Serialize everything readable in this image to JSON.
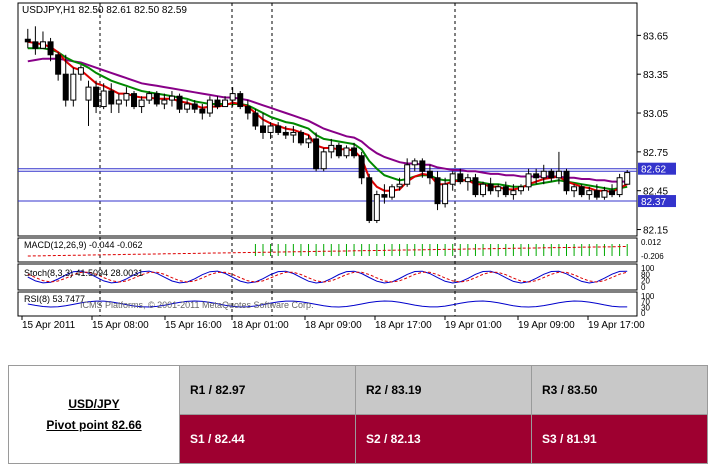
{
  "chart": {
    "symbol_line": "USDJPY,H1  82.50 82.61 82.50 82.59",
    "macd_label": "MACD(12,26,9) -0.044 -0.062",
    "stoch_label": "Stoch(8,3,3) 41.5094 28.0031",
    "rsi_label": "RSI(8) 53.7477",
    "copyright": "ICMS Platforms, © 2001-2011 MetaQuotes Software Corp.",
    "price_axis_labels": [
      "83.65",
      "83.35",
      "83.05",
      "82.75",
      "82.45",
      "82.15"
    ],
    "line_tags": [
      {
        "value": 82.62,
        "label": "82.62",
        "color": "#3333cc"
      },
      {
        "value": 82.37,
        "label": "82.37",
        "color": "#3333cc"
      }
    ],
    "macd_axis_labels": [
      "0.012",
      "-0.206"
    ],
    "stoch_axis_labels": [
      "100",
      "80",
      "20",
      "0"
    ],
    "rsi_axis_labels": [
      "100",
      "70",
      "30",
      "0"
    ],
    "colors": {
      "ma_fast": "#dd0000",
      "ma_mid": "#008800",
      "ma_slow": "#880088",
      "level_line": "#3333cc",
      "macd_hist": "#00aa00",
      "stoch_main": "#0000cc",
      "stoch_signal": "#dd0000",
      "rsi": "#0000cc"
    }
  },
  "chart_data": {
    "type": "candlestick",
    "ylim": [
      82.1,
      83.9
    ],
    "x_tick_labels": [
      "15 Apr 2011",
      "15 Apr 08:00",
      "15 Apr 16:00",
      "18 Apr 01:00",
      "18 Apr 09:00",
      "18 Apr 17:00",
      "19 Apr 01:00",
      "19 Apr 09:00",
      "19 Apr 17:00"
    ],
    "candles": [
      {
        "o": 83.62,
        "h": 83.7,
        "l": 83.55,
        "c": 83.6
      },
      {
        "o": 83.6,
        "h": 83.72,
        "l": 83.5,
        "c": 83.55
      },
      {
        "o": 83.55,
        "h": 83.68,
        "l": 83.55,
        "c": 83.6
      },
      {
        "o": 83.6,
        "h": 83.63,
        "l": 83.45,
        "c": 83.5
      },
      {
        "o": 83.5,
        "h": 83.52,
        "l": 83.3,
        "c": 83.35
      },
      {
        "o": 83.35,
        "h": 83.5,
        "l": 83.1,
        "c": 83.15
      },
      {
        "o": 83.15,
        "h": 83.4,
        "l": 83.1,
        "c": 83.35
      },
      {
        "o": 83.35,
        "h": 83.42,
        "l": 83.3,
        "c": 83.4
      },
      {
        "o": 83.15,
        "h": 83.3,
        "l": 82.95,
        "c": 83.25
      },
      {
        "o": 83.25,
        "h": 83.3,
        "l": 83.05,
        "c": 83.1
      },
      {
        "o": 83.1,
        "h": 83.28,
        "l": 83.08,
        "c": 83.22
      },
      {
        "o": 83.22,
        "h": 83.28,
        "l": 83.05,
        "c": 83.12
      },
      {
        "o": 83.12,
        "h": 83.2,
        "l": 83.05,
        "c": 83.15
      },
      {
        "o": 83.15,
        "h": 83.25,
        "l": 83.1,
        "c": 83.2
      },
      {
        "o": 83.2,
        "h": 83.22,
        "l": 83.08,
        "c": 83.1
      },
      {
        "o": 83.1,
        "h": 83.18,
        "l": 83.05,
        "c": 83.15
      },
      {
        "o": 83.15,
        "h": 83.22,
        "l": 83.12,
        "c": 83.2
      },
      {
        "o": 83.2,
        "h": 83.22,
        "l": 83.1,
        "c": 83.12
      },
      {
        "o": 83.12,
        "h": 83.2,
        "l": 83.08,
        "c": 83.15
      },
      {
        "o": 83.15,
        "h": 83.22,
        "l": 83.1,
        "c": 83.18
      },
      {
        "o": 83.18,
        "h": 83.2,
        "l": 83.05,
        "c": 83.08
      },
      {
        "o": 83.08,
        "h": 83.15,
        "l": 83.05,
        "c": 83.12
      },
      {
        "o": 83.12,
        "h": 83.15,
        "l": 83.05,
        "c": 83.08
      },
      {
        "o": 83.08,
        "h": 83.12,
        "l": 83.0,
        "c": 83.05
      },
      {
        "o": 83.05,
        "h": 83.18,
        "l": 83.02,
        "c": 83.15
      },
      {
        "o": 83.15,
        "h": 83.18,
        "l": 83.08,
        "c": 83.1
      },
      {
        "o": 83.1,
        "h": 83.18,
        "l": 83.1,
        "c": 83.15
      },
      {
        "o": 83.15,
        "h": 83.25,
        "l": 83.1,
        "c": 83.2
      },
      {
        "o": 83.2,
        "h": 83.22,
        "l": 83.08,
        "c": 83.1
      },
      {
        "o": 83.1,
        "h": 83.15,
        "l": 83.0,
        "c": 83.05
      },
      {
        "o": 83.05,
        "h": 83.08,
        "l": 82.92,
        "c": 82.95
      },
      {
        "o": 82.95,
        "h": 83.05,
        "l": 82.85,
        "c": 82.9
      },
      {
        "o": 82.9,
        "h": 82.98,
        "l": 82.85,
        "c": 82.95
      },
      {
        "o": 82.95,
        "h": 82.98,
        "l": 82.88,
        "c": 82.9
      },
      {
        "o": 82.9,
        "h": 82.95,
        "l": 82.85,
        "c": 82.88
      },
      {
        "o": 82.88,
        "h": 82.95,
        "l": 82.82,
        "c": 82.9
      },
      {
        "o": 82.9,
        "h": 82.92,
        "l": 82.8,
        "c": 82.82
      },
      {
        "o": 82.82,
        "h": 82.88,
        "l": 82.78,
        "c": 82.85
      },
      {
        "o": 82.85,
        "h": 82.9,
        "l": 82.6,
        "c": 82.62
      },
      {
        "o": 82.62,
        "h": 82.78,
        "l": 82.6,
        "c": 82.75
      },
      {
        "o": 82.75,
        "h": 82.85,
        "l": 82.7,
        "c": 82.8
      },
      {
        "o": 82.8,
        "h": 82.82,
        "l": 82.7,
        "c": 82.72
      },
      {
        "o": 82.72,
        "h": 82.8,
        "l": 82.7,
        "c": 82.78
      },
      {
        "o": 82.78,
        "h": 82.82,
        "l": 82.7,
        "c": 82.72
      },
      {
        "o": 82.72,
        "h": 82.75,
        "l": 82.5,
        "c": 82.55
      },
      {
        "o": 82.55,
        "h": 82.58,
        "l": 82.2,
        "c": 82.22
      },
      {
        "o": 82.22,
        "h": 82.45,
        "l": 82.2,
        "c": 82.42
      },
      {
        "o": 82.42,
        "h": 82.5,
        "l": 82.35,
        "c": 82.4
      },
      {
        "o": 82.4,
        "h": 82.5,
        "l": 82.38,
        "c": 82.48
      },
      {
        "o": 82.48,
        "h": 82.55,
        "l": 82.45,
        "c": 82.5
      },
      {
        "o": 82.5,
        "h": 82.7,
        "l": 82.48,
        "c": 82.65
      },
      {
        "o": 82.65,
        "h": 82.7,
        "l": 82.6,
        "c": 82.68
      },
      {
        "o": 82.68,
        "h": 82.7,
        "l": 82.55,
        "c": 82.6
      },
      {
        "o": 82.6,
        "h": 82.65,
        "l": 82.5,
        "c": 82.55
      },
      {
        "o": 82.55,
        "h": 82.6,
        "l": 82.3,
        "c": 82.35
      },
      {
        "o": 82.35,
        "h": 82.55,
        "l": 82.32,
        "c": 82.5
      },
      {
        "o": 82.5,
        "h": 82.6,
        "l": 82.45,
        "c": 82.58
      },
      {
        "o": 82.58,
        "h": 82.62,
        "l": 82.5,
        "c": 82.52
      },
      {
        "o": 82.52,
        "h": 82.58,
        "l": 82.45,
        "c": 82.55
      },
      {
        "o": 82.55,
        "h": 82.58,
        "l": 82.4,
        "c": 82.42
      },
      {
        "o": 82.42,
        "h": 82.52,
        "l": 82.4,
        "c": 82.5
      },
      {
        "o": 82.5,
        "h": 82.55,
        "l": 82.42,
        "c": 82.45
      },
      {
        "o": 82.45,
        "h": 82.5,
        "l": 82.4,
        "c": 82.48
      },
      {
        "o": 82.48,
        "h": 82.52,
        "l": 82.4,
        "c": 82.42
      },
      {
        "o": 82.42,
        "h": 82.5,
        "l": 82.38,
        "c": 82.45
      },
      {
        "o": 82.45,
        "h": 82.5,
        "l": 82.42,
        "c": 82.48
      },
      {
        "o": 82.48,
        "h": 82.62,
        "l": 82.45,
        "c": 82.58
      },
      {
        "o": 82.58,
        "h": 82.62,
        "l": 82.5,
        "c": 82.55
      },
      {
        "o": 82.55,
        "h": 82.65,
        "l": 82.5,
        "c": 82.6
      },
      {
        "o": 82.6,
        "h": 82.62,
        "l": 82.52,
        "c": 82.55
      },
      {
        "o": 82.55,
        "h": 82.75,
        "l": 82.5,
        "c": 82.6
      },
      {
        "o": 82.6,
        "h": 82.62,
        "l": 82.42,
        "c": 82.45
      },
      {
        "o": 82.45,
        "h": 82.5,
        "l": 82.4,
        "c": 82.48
      },
      {
        "o": 82.48,
        "h": 82.5,
        "l": 82.4,
        "c": 82.42
      },
      {
        "o": 82.42,
        "h": 82.48,
        "l": 82.38,
        "c": 82.45
      },
      {
        "o": 82.45,
        "h": 82.5,
        "l": 82.38,
        "c": 82.4
      },
      {
        "o": 82.4,
        "h": 82.48,
        "l": 82.38,
        "c": 82.45
      },
      {
        "o": 82.45,
        "h": 82.5,
        "l": 82.4,
        "c": 82.42
      },
      {
        "o": 82.42,
        "h": 82.58,
        "l": 82.4,
        "c": 82.55
      },
      {
        "o": 82.5,
        "h": 82.61,
        "l": 82.5,
        "c": 82.59
      }
    ],
    "ma_fast": [
      83.6,
      83.59,
      83.58,
      83.56,
      83.52,
      83.45,
      83.4,
      83.38,
      83.33,
      83.28,
      83.26,
      83.23,
      83.2,
      83.2,
      83.18,
      83.17,
      83.17,
      83.16,
      83.16,
      83.16,
      83.14,
      83.13,
      83.11,
      83.09,
      83.1,
      83.1,
      83.11,
      83.13,
      83.12,
      83.1,
      83.05,
      83.0,
      82.97,
      82.95,
      82.93,
      82.92,
      82.9,
      82.88,
      82.8,
      82.78,
      82.78,
      82.77,
      82.77,
      82.76,
      82.7,
      82.55,
      82.48,
      82.45,
      82.45,
      82.46,
      82.52,
      82.56,
      82.58,
      82.57,
      82.5,
      82.5,
      82.52,
      82.53,
      82.53,
      82.5,
      82.5,
      82.48,
      82.48,
      82.46,
      82.46,
      82.47,
      82.5,
      82.52,
      82.54,
      82.55,
      82.56,
      82.52,
      82.5,
      82.48,
      82.47,
      82.45,
      82.45,
      82.44,
      82.47,
      82.5
    ],
    "ma_mid": [
      83.55,
      83.55,
      83.55,
      83.54,
      83.52,
      83.48,
      83.45,
      83.43,
      83.4,
      83.36,
      83.33,
      83.3,
      83.28,
      83.26,
      83.24,
      83.22,
      83.21,
      83.2,
      83.19,
      83.18,
      83.17,
      83.16,
      83.14,
      83.13,
      83.12,
      83.12,
      83.12,
      83.12,
      83.12,
      83.11,
      83.08,
      83.05,
      83.02,
      83.0,
      82.98,
      82.97,
      82.95,
      82.93,
      82.88,
      82.85,
      82.84,
      82.83,
      82.82,
      82.81,
      82.77,
      82.68,
      82.62,
      82.57,
      82.55,
      82.53,
      82.54,
      82.56,
      82.57,
      82.57,
      82.54,
      82.53,
      82.53,
      82.53,
      82.53,
      82.52,
      82.51,
      82.5,
      82.5,
      82.49,
      82.48,
      82.48,
      82.49,
      82.5,
      82.51,
      82.52,
      82.53,
      82.52,
      82.51,
      82.5,
      82.49,
      82.48,
      82.47,
      82.46,
      82.47,
      82.48
    ],
    "ma_slow": [
      83.45,
      83.46,
      83.47,
      83.47,
      83.47,
      83.46,
      83.45,
      83.44,
      83.42,
      83.4,
      83.38,
      83.36,
      83.34,
      83.32,
      83.3,
      83.28,
      83.27,
      83.26,
      83.25,
      83.24,
      83.23,
      83.22,
      83.21,
      83.2,
      83.19,
      83.18,
      83.17,
      83.17,
      83.16,
      83.15,
      83.13,
      83.11,
      83.09,
      83.07,
      83.05,
      83.03,
      83.01,
      82.99,
      82.96,
      82.93,
      82.91,
      82.89,
      82.87,
      82.86,
      82.83,
      82.78,
      82.74,
      82.71,
      82.69,
      82.67,
      82.66,
      82.66,
      82.65,
      82.65,
      82.63,
      82.62,
      82.61,
      82.61,
      82.6,
      82.6,
      82.59,
      82.58,
      82.58,
      82.57,
      82.57,
      82.56,
      82.56,
      82.56,
      82.56,
      82.56,
      82.56,
      82.55,
      82.55,
      82.54,
      82.54,
      82.53,
      82.53,
      82.52,
      82.52,
      82.52
    ]
  },
  "pivot_table": {
    "pair": "USD/JPY",
    "pivot": "Pivot point 82.66",
    "r1": "R1 / 82.97",
    "r2": "R2 / 83.19",
    "r3": "R3 / 83.50",
    "s1": "S1 / 82.44",
    "s2": "S2 / 82.13",
    "s3": "S3 / 81.91"
  }
}
